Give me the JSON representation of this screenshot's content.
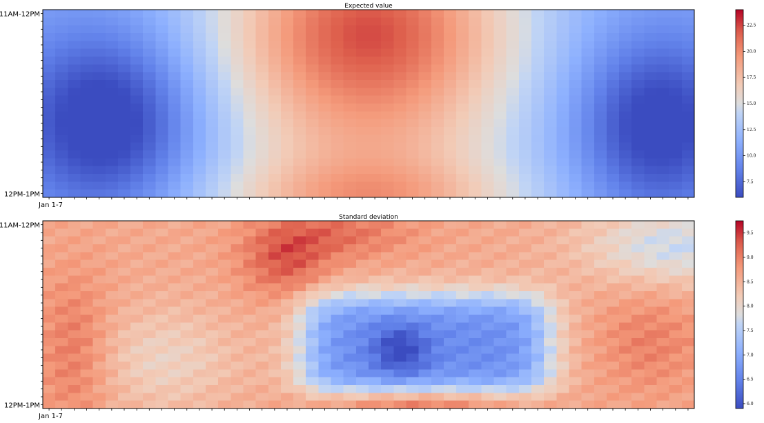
{
  "chart_data": [
    {
      "type": "heatmap",
      "title": "Expected value",
      "ytick_labels": [
        "11AM-12PM",
        "12PM-1PM"
      ],
      "xtick_labels": [
        "Jan 1-7"
      ],
      "grid": {
        "cols": 52,
        "rows": 24
      },
      "colormap": "coolwarm",
      "clim": [
        6.0,
        24.0
      ],
      "colorbar_ticks": [
        7.5,
        10.0,
        12.5,
        15.0,
        17.5,
        20.0,
        22.5
      ],
      "colorbar_labels": [
        "7.5",
        "10.0",
        "12.5",
        "15.0",
        "17.5",
        "20.0",
        "22.5"
      ],
      "pattern": "cold at both ends (min ~6 near middle rows), warm center (max ~24 near top rows)"
    },
    {
      "type": "heatmap",
      "title": "Standard deviation",
      "ytick_labels": [
        "11AM-12PM",
        "12PM-1PM"
      ],
      "xtick_labels": [
        "Jan 1-7"
      ],
      "grid": {
        "cols": 52,
        "rows": 24
      },
      "colormap": "coolwarm",
      "clim": [
        5.9,
        9.75
      ],
      "colorbar_ticks": [
        6.0,
        6.5,
        7.0,
        7.5,
        8.0,
        8.5,
        9.0,
        9.5
      ],
      "colorbar_labels": [
        "6.0",
        "6.5",
        "7.0",
        "7.5",
        "8.0",
        "8.5",
        "9.0",
        "9.5"
      ],
      "pattern": "mostly warm (~8.5-9.5), cool low-variance block in center-lower region (~6-7)"
    }
  ]
}
